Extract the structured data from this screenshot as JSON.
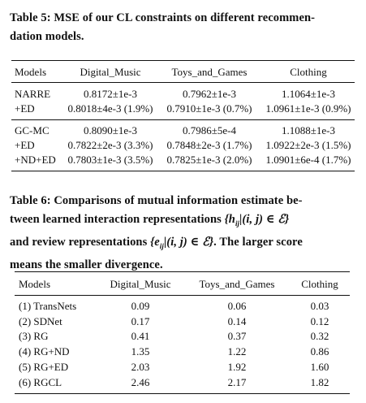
{
  "table5": {
    "caption_lines": [
      "Table 5: MSE of our CL constraints on different recommen-",
      "dation models."
    ],
    "headers": [
      "Models",
      "Digital_Music",
      "Toys_and_Games",
      "Clothing"
    ],
    "group1": [
      {
        "model": "NARRE",
        "digital_music": "0.8172±1e-3",
        "toys_and_games": "0.7962±1e-3",
        "clothing": "1.1064±1e-3"
      },
      {
        "model": "+ED",
        "digital_music": "0.8018±4e-3 (1.9%)",
        "toys_and_games": "0.7910±1e-3 (0.7%)",
        "clothing": "1.0961±1e-3 (0.9%)"
      }
    ],
    "group2": [
      {
        "model": "GC-MC",
        "digital_music": "0.8090±1e-3",
        "toys_and_games": "0.7986±5e-4",
        "clothing": "1.1088±1e-3"
      },
      {
        "model": "+ED",
        "digital_music": "0.7822±2e-3 (3.3%)",
        "toys_and_games": "0.7848±2e-3 (1.7%)",
        "clothing": "1.0922±2e-3 (1.5%)"
      },
      {
        "model": "+ND+ED",
        "digital_music": "0.7803±1e-3 (3.5%)",
        "toys_and_games": "0.7825±1e-3 (2.0%)",
        "clothing": "1.0901±6e-4 (1.7%)"
      }
    ]
  },
  "table6": {
    "caption": {
      "line1": "Table 6: Comparisons of mutual information estimate be-",
      "line2_pre": "tween learned interaction representations ",
      "math_h": "{h",
      "math_h_sub": "ij",
      "math_h_rest": "|(i, j) ∈ ℰ}",
      "line3_pre": "and review representations ",
      "math_e": "{e",
      "math_e_sub": "ij",
      "math_e_rest": "|(i, j) ∈ ℰ}",
      "line3_post": ". The larger score",
      "line4": "means the smaller divergence."
    },
    "headers": [
      "Models",
      "Digital_Music",
      "Toys_and_Games",
      "Clothing"
    ],
    "rows": [
      {
        "model": "(1) TransNets",
        "digital_music": "0.09",
        "toys_and_games": "0.06",
        "clothing": "0.03"
      },
      {
        "model": "(2) SDNet",
        "digital_music": "0.17",
        "toys_and_games": "0.14",
        "clothing": "0.12"
      },
      {
        "model": "(3) RG",
        "digital_music": "0.41",
        "toys_and_games": "0.37",
        "clothing": "0.32"
      },
      {
        "model": "(4) RG+ND",
        "digital_music": "1.35",
        "toys_and_games": "1.22",
        "clothing": "0.86"
      },
      {
        "model": "(5) RG+ED",
        "digital_music": "2.03",
        "toys_and_games": "1.92",
        "clothing": "1.60"
      },
      {
        "model": "(6) RGCL",
        "digital_music": "2.46",
        "toys_and_games": "2.17",
        "clothing": "1.82"
      }
    ]
  }
}
